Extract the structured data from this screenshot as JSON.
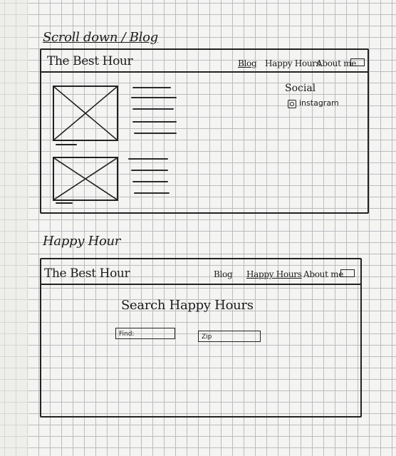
{
  "page_1": {
    "label": "Scroll down / Blog",
    "nav": {
      "brand": "The Best Hour",
      "links": [
        "Blog",
        "Happy Hours",
        "About me"
      ]
    },
    "sidebar": {
      "title": "Social",
      "instagram_label": "instagram",
      "instagram_icon": "instagram-icon"
    }
  },
  "page_2": {
    "label": "Happy Hour",
    "nav": {
      "brand": "The Best Hour",
      "links": [
        "Blog",
        "Happy Hours",
        "About me"
      ]
    },
    "search": {
      "title": "Search Happy Hours",
      "find_placeholder": "Find:",
      "zip_placeholder": "Zip"
    }
  }
}
